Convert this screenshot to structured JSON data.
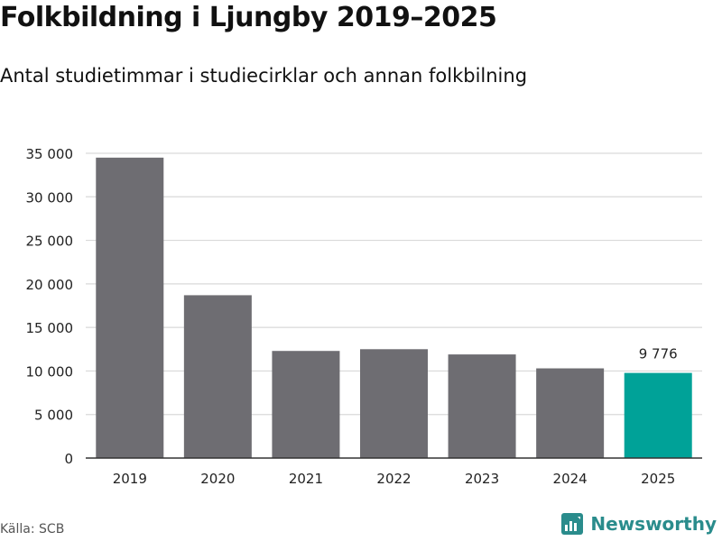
{
  "header": {
    "title": "Folkbildning i Ljungby 2019–2025",
    "subtitle": "Antal studietimmar i studiecirklar och annan folkbilning"
  },
  "footer": {
    "source": "Källa: SCB",
    "brand": "Newsworthy",
    "brand_icon": "newsworthy-logo-icon"
  },
  "colors": {
    "bar": "#6e6d72",
    "highlight": "#00a298",
    "grid": "#d9d9d9",
    "axis": "#333333",
    "brand": "#2a8c8c"
  },
  "chart_data": {
    "type": "bar",
    "title": "Folkbildning i Ljungby 2019–2025",
    "subtitle": "Antal studietimmar i studiecirklar och annan folkbilning",
    "xlabel": "",
    "ylabel": "",
    "categories": [
      "2019",
      "2020",
      "2021",
      "2022",
      "2023",
      "2024",
      "2025"
    ],
    "values": [
      34500,
      18700,
      12300,
      12500,
      11900,
      10300,
      9776
    ],
    "highlight_index": 6,
    "data_labels": [
      {
        "index": 6,
        "text": "9 776"
      }
    ],
    "ylim": [
      0,
      35000
    ],
    "yticks": [
      0,
      5000,
      10000,
      15000,
      20000,
      25000,
      30000,
      35000
    ],
    "ytick_labels": [
      "0",
      "5 000",
      "10 000",
      "15 000",
      "20 000",
      "25 000",
      "30 000",
      "35 000"
    ],
    "grid": true,
    "legend": "none"
  }
}
